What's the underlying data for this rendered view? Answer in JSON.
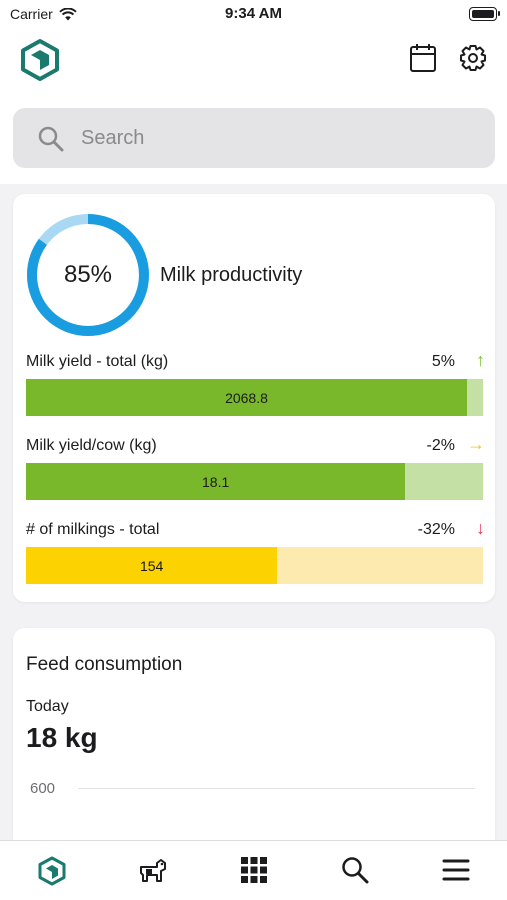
{
  "status_bar": {
    "carrier": "Carrier",
    "time": "9:34 AM",
    "icons": [
      "wifi-icon",
      "battery-icon"
    ]
  },
  "header": {
    "logo": "hexagon-logo",
    "actions": [
      "calendar-icon",
      "gear-icon"
    ]
  },
  "search": {
    "placeholder": "Search",
    "value": ""
  },
  "milk_card": {
    "productivity_value": "85%",
    "productivity_fraction": 0.85,
    "productivity_label": "Milk productivity",
    "metrics": [
      {
        "label": "Milk yield - total (kg)",
        "change": "5%",
        "arrow": "↑",
        "arrow_color": "#7cc33f",
        "value": "2068.8",
        "fill_fraction": 0.965,
        "fill_color": "#78b82a",
        "track_color": "#c5e0a5"
      },
      {
        "label": "Milk yield/cow (kg)",
        "change": "-2%",
        "arrow": "→",
        "arrow_color": "#f1c40f",
        "value": "18.1",
        "fill_fraction": 0.83,
        "fill_color": "#78b82a",
        "track_color": "#c5e0a5"
      },
      {
        "label": "# of milkings - total",
        "change": "-32%",
        "arrow": "↓",
        "arrow_color": "#e23d5e",
        "value": "154",
        "fill_fraction": 0.55,
        "fill_color": "#fcd200",
        "track_color": "#fdeaae"
      }
    ]
  },
  "feed_card": {
    "title": "Feed consumption",
    "subtitle": "Today",
    "value": "18 kg",
    "y_tick": "600"
  },
  "tab_bar": {
    "items": [
      "home-icon",
      "cow-icon",
      "grid-icon",
      "search-icon",
      "menu-icon"
    ]
  },
  "colors": {
    "accent": "#1a7a6e",
    "donut": "#1a9de0",
    "donut_track": "#a8d8f4"
  }
}
